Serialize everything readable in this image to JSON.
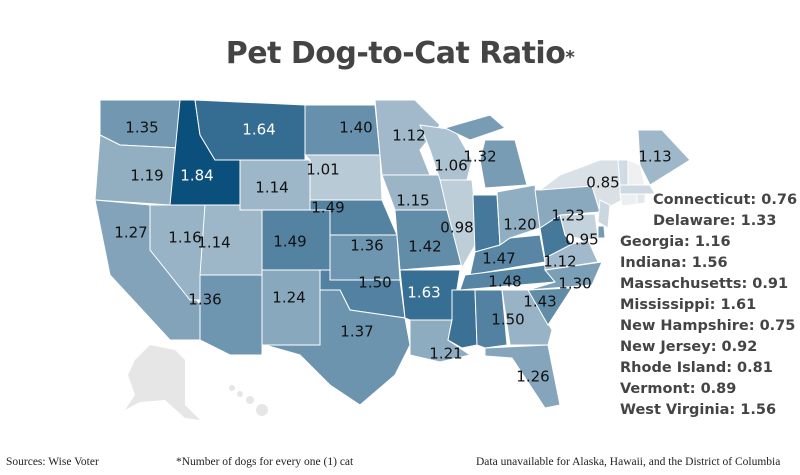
{
  "title": "Pet Dog-to-Cat Ratio",
  "title_asterisk": "*",
  "colors": {
    "low": "#eef0f2",
    "high": "#0b4f7c",
    "border": "#ffffff",
    "unavailable": "#e6e6e6"
  },
  "scale": {
    "min": 0.75,
    "max": 1.84
  },
  "states": [
    {
      "id": "WA",
      "value": 1.35,
      "label": "1.35"
    },
    {
      "id": "OR",
      "value": 1.19,
      "label": "1.19"
    },
    {
      "id": "CA",
      "value": 1.27,
      "label": "1.27"
    },
    {
      "id": "NV",
      "value": 1.16,
      "label": "1.16"
    },
    {
      "id": "ID",
      "value": 1.84,
      "label": "1.84"
    },
    {
      "id": "MT",
      "value": 1.64,
      "label": "1.64"
    },
    {
      "id": "WY",
      "value": 1.14,
      "label": "1.14"
    },
    {
      "id": "UT",
      "value": 1.14,
      "label": "1.14"
    },
    {
      "id": "CO",
      "value": 1.49,
      "label": "1.49"
    },
    {
      "id": "AZ",
      "value": 1.36,
      "label": "1.36"
    },
    {
      "id": "NM",
      "value": 1.24,
      "label": "1.24"
    },
    {
      "id": "ND",
      "value": 1.4,
      "label": "1.40"
    },
    {
      "id": "SD",
      "value": 1.01,
      "label": "1.01"
    },
    {
      "id": "NE",
      "value": 1.49,
      "label": "1.49"
    },
    {
      "id": "KS",
      "value": 1.36,
      "label": "1.36"
    },
    {
      "id": "OK",
      "value": 1.5,
      "label": "1.50"
    },
    {
      "id": "TX",
      "value": 1.37,
      "label": "1.37"
    },
    {
      "id": "MN",
      "value": 1.12,
      "label": "1.12"
    },
    {
      "id": "IA",
      "value": 1.15,
      "label": "1.15"
    },
    {
      "id": "MO",
      "value": 1.42,
      "label": "1.42"
    },
    {
      "id": "AR",
      "value": 1.63,
      "label": "1.63"
    },
    {
      "id": "LA",
      "value": 1.21,
      "label": "1.21"
    },
    {
      "id": "WI",
      "value": 1.06,
      "label": "1.06"
    },
    {
      "id": "IL",
      "value": 0.98,
      "label": "0.98"
    },
    {
      "id": "IN",
      "value": 1.56,
      "label": ""
    },
    {
      "id": "MI",
      "value": 1.32,
      "label": "1.32"
    },
    {
      "id": "OH",
      "value": 1.2,
      "label": "1.20"
    },
    {
      "id": "KY",
      "value": 1.47,
      "label": "1.47"
    },
    {
      "id": "TN",
      "value": 1.48,
      "label": "1.48"
    },
    {
      "id": "MS",
      "value": 1.61,
      "label": ""
    },
    {
      "id": "AL",
      "value": 1.5,
      "label": "1.50"
    },
    {
      "id": "GA",
      "value": 1.16,
      "label": ""
    },
    {
      "id": "FL",
      "value": 1.26,
      "label": "1.26"
    },
    {
      "id": "SC",
      "value": 1.43,
      "label": "1.43"
    },
    {
      "id": "NC",
      "value": 1.3,
      "label": "1.30"
    },
    {
      "id": "VA",
      "value": 1.12,
      "label": "1.12"
    },
    {
      "id": "WV",
      "value": 1.56,
      "label": ""
    },
    {
      "id": "MD",
      "value": 0.95,
      "label": "0.95"
    },
    {
      "id": "PA",
      "value": 1.23,
      "label": "1.23"
    },
    {
      "id": "NY",
      "value": 0.85,
      "label": "0.85"
    },
    {
      "id": "ME",
      "value": 1.13,
      "label": "1.13"
    },
    {
      "id": "VT",
      "value": 0.89,
      "label": ""
    },
    {
      "id": "NH",
      "value": 0.75,
      "label": ""
    },
    {
      "id": "MA",
      "value": 0.91,
      "label": ""
    },
    {
      "id": "CT",
      "value": 0.76,
      "label": ""
    },
    {
      "id": "RI",
      "value": 0.81,
      "label": ""
    },
    {
      "id": "NJ",
      "value": 0.92,
      "label": ""
    },
    {
      "id": "DE",
      "value": 1.33,
      "label": ""
    }
  ],
  "legend": [
    "Connecticut: 0.76",
    "Delaware: 1.33",
    "Georgia: 1.16",
    "Indiana: 1.56",
    "Massachusetts: 0.91",
    "Mississippi: 1.61",
    "New Hampshire: 0.75",
    "New Jersey: 0.92",
    "Rhode Island: 0.81",
    "Vermont: 0.89",
    "West Virginia: 1.56"
  ],
  "footer": {
    "source": "Sources: Wise Voter",
    "note": "*Number of dogs for every one (1) cat",
    "unavailable": "Data unavailable for Alaska, Hawaii, and the District of Columbia"
  }
}
